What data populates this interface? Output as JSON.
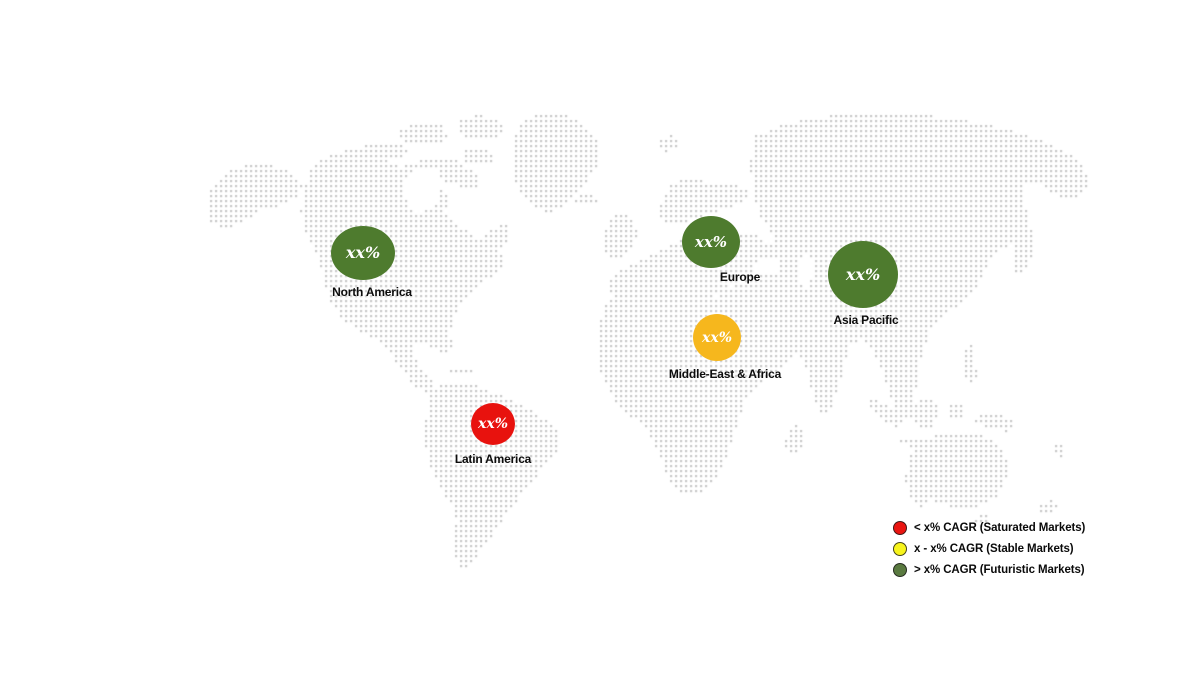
{
  "map": {
    "dot_color": "#c9c9c9",
    "background": "#ffffff"
  },
  "regions": [
    {
      "key": "north-america",
      "label": "North America",
      "value": "xx%",
      "color": "#4e7b2e",
      "category": "futuristic"
    },
    {
      "key": "europe",
      "label": "Europe",
      "value": "xx%",
      "color": "#4e7b2e",
      "category": "futuristic"
    },
    {
      "key": "asia-pacific",
      "label": "Asia Pacific",
      "value": "xx%",
      "color": "#4e7b2e",
      "category": "futuristic"
    },
    {
      "key": "middle-east-africa",
      "label": "Middle-East & Africa",
      "value": "xx%",
      "color": "#f6b71d",
      "category": "stable"
    },
    {
      "key": "latin-america",
      "label": "Latin America",
      "value": "xx%",
      "color": "#e8120e",
      "category": "saturated"
    }
  ],
  "legend": {
    "items": [
      {
        "label": "< x% CAGR (Saturated Markets)",
        "color": "#ea1511"
      },
      {
        "label": "x - x% CAGR (Stable Markets)",
        "color": "#f7f41c"
      },
      {
        "label": "> x% CAGR (Futuristic Markets)",
        "color": "#5a7a40"
      }
    ]
  }
}
